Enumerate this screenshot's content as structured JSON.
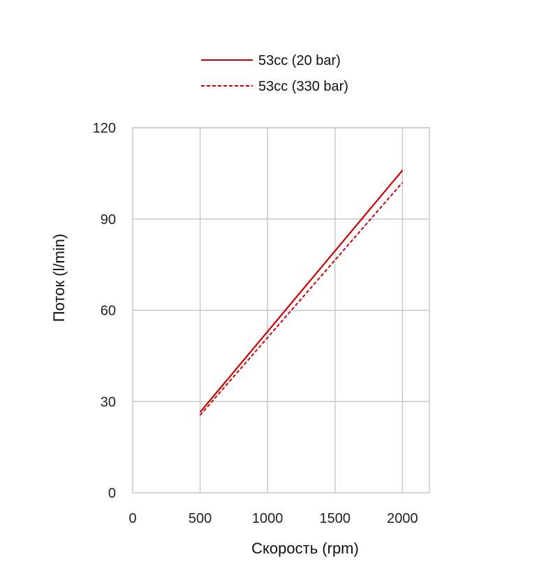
{
  "chart_data": {
    "type": "line",
    "xlabel": "Скорость (rpm)",
    "ylabel": "Поток (l/min)",
    "xlim": [
      0,
      2200
    ],
    "ylim": [
      0,
      120
    ],
    "xticks": [
      0,
      500,
      1000,
      1500,
      2000
    ],
    "yticks": [
      0,
      30,
      60,
      90,
      120
    ],
    "grid": true,
    "legend_position": "top-center",
    "series": [
      {
        "name": "53cc (20 bar)",
        "line_style": "solid",
        "color": "#cc0000",
        "x": [
          500,
          2000
        ],
        "y": [
          26.5,
          106
        ]
      },
      {
        "name": "53cc (330 bar)",
        "line_style": "dashed",
        "color": "#cc0000",
        "x": [
          500,
          2000
        ],
        "y": [
          25.5,
          102
        ]
      }
    ]
  }
}
